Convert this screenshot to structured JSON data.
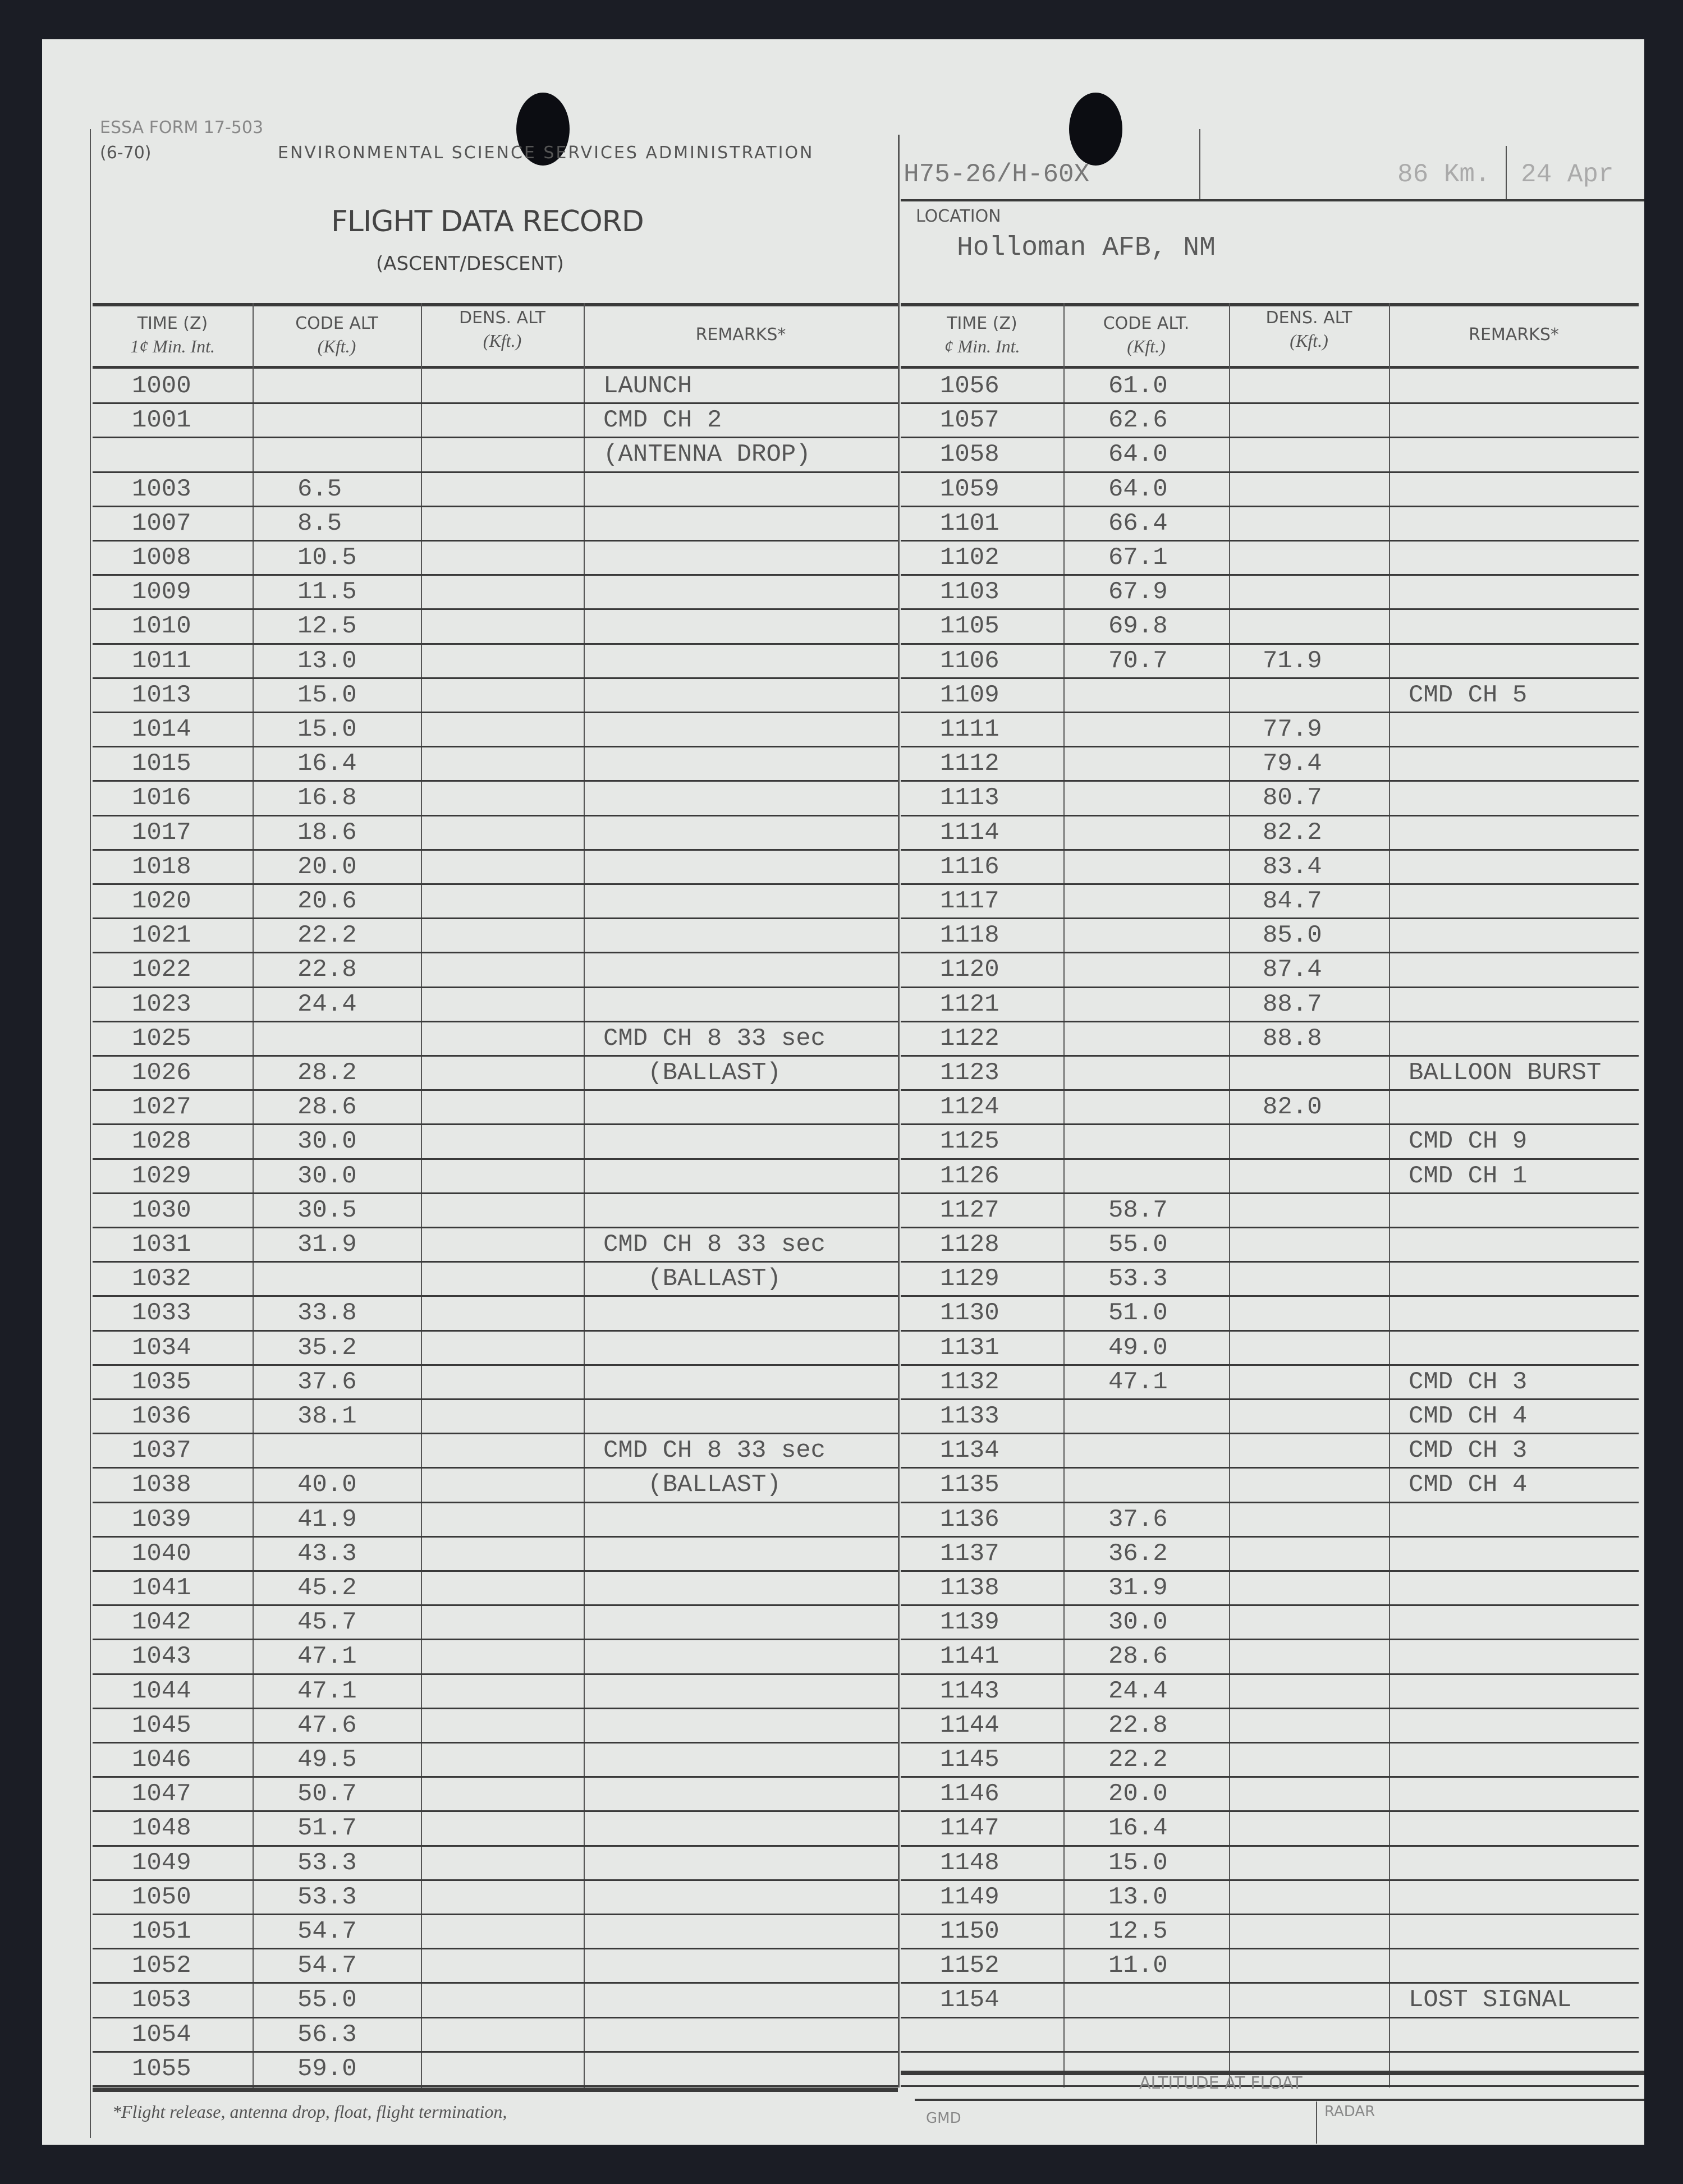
{
  "form": {
    "form_number": "ESSA FORM 17-503",
    "form_date": "(6-70)",
    "agency": "ENVIRONMENTAL SCIENCE SERVICES ADMINISTRATION",
    "title": "FLIGHT DATA RECORD",
    "subtitle": "(ASCENT/DESCENT)",
    "flight_id": "H75-26/H-60X",
    "altitude": "86 Km.",
    "date": "24 Apr",
    "location_label": "LOCATION",
    "location": "Holloman AFB, NM"
  },
  "columns": {
    "time": "TIME (Z)",
    "time_sub": "1¢ Min. Int.",
    "time_sub_right": "¢ Min. Int.",
    "code_alt": "CODE ALT",
    "code_alt_right": "CODE ALT.",
    "dens_alt": "DENS. ALT",
    "unit": "(Kft.)",
    "remarks": "REMARKS*"
  },
  "left_rows": [
    [
      "1000",
      "",
      "",
      "LAUNCH"
    ],
    [
      "1001",
      "",
      "",
      "CMD CH 2"
    ],
    [
      "",
      "",
      "",
      "(ANTENNA DROP)"
    ],
    [
      "1003",
      "6.5",
      "",
      ""
    ],
    [
      "1007",
      "8.5",
      "",
      ""
    ],
    [
      "1008",
      "10.5",
      "",
      ""
    ],
    [
      "1009",
      "11.5",
      "",
      ""
    ],
    [
      "1010",
      "12.5",
      "",
      ""
    ],
    [
      "1011",
      "13.0",
      "",
      ""
    ],
    [
      "1013",
      "15.0",
      "",
      ""
    ],
    [
      "1014",
      "15.0",
      "",
      ""
    ],
    [
      "1015",
      "16.4",
      "",
      ""
    ],
    [
      "1016",
      "16.8",
      "",
      ""
    ],
    [
      "1017",
      "18.6",
      "",
      ""
    ],
    [
      "1018",
      "20.0",
      "",
      ""
    ],
    [
      "1020",
      "20.6",
      "",
      ""
    ],
    [
      "1021",
      "22.2",
      "",
      ""
    ],
    [
      "1022",
      "22.8",
      "",
      ""
    ],
    [
      "1023",
      "24.4",
      "",
      ""
    ],
    [
      "1025",
      "",
      "",
      "CMD CH 8 33 sec"
    ],
    [
      "1026",
      "28.2",
      "",
      "   (BALLAST)"
    ],
    [
      "1027",
      "28.6",
      "",
      ""
    ],
    [
      "1028",
      "30.0",
      "",
      ""
    ],
    [
      "1029",
      "30.0",
      "",
      ""
    ],
    [
      "1030",
      "30.5",
      "",
      ""
    ],
    [
      "1031",
      "31.9",
      "",
      "CMD CH 8 33 sec"
    ],
    [
      "1032",
      "",
      "",
      "   (BALLAST)"
    ],
    [
      "1033",
      "33.8",
      "",
      ""
    ],
    [
      "1034",
      "35.2",
      "",
      ""
    ],
    [
      "1035",
      "37.6",
      "",
      ""
    ],
    [
      "1036",
      "38.1",
      "",
      ""
    ],
    [
      "1037",
      "",
      "",
      "CMD CH 8 33 sec"
    ],
    [
      "1038",
      "40.0",
      "",
      "   (BALLAST)"
    ],
    [
      "1039",
      "41.9",
      "",
      ""
    ],
    [
      "1040",
      "43.3",
      "",
      ""
    ],
    [
      "1041",
      "45.2",
      "",
      ""
    ],
    [
      "1042",
      "45.7",
      "",
      ""
    ],
    [
      "1043",
      "47.1",
      "",
      ""
    ],
    [
      "1044",
      "47.1",
      "",
      ""
    ],
    [
      "1045",
      "47.6",
      "",
      ""
    ],
    [
      "1046",
      "49.5",
      "",
      ""
    ],
    [
      "1047",
      "50.7",
      "",
      ""
    ],
    [
      "1048",
      "51.7",
      "",
      ""
    ],
    [
      "1049",
      "53.3",
      "",
      ""
    ],
    [
      "1050",
      "53.3",
      "",
      ""
    ],
    [
      "1051",
      "54.7",
      "",
      ""
    ],
    [
      "1052",
      "54.7",
      "",
      ""
    ],
    [
      "1053",
      "55.0",
      "",
      ""
    ],
    [
      "1054",
      "56.3",
      "",
      ""
    ],
    [
      "1055",
      "59.0",
      "",
      ""
    ]
  ],
  "right_rows": [
    [
      "1056",
      "61.0",
      "",
      ""
    ],
    [
      "1057",
      "62.6",
      "",
      ""
    ],
    [
      "1058",
      "64.0",
      "",
      ""
    ],
    [
      "1059",
      "64.0",
      "",
      ""
    ],
    [
      "1101",
      "66.4",
      "",
      ""
    ],
    [
      "1102",
      "67.1",
      "",
      ""
    ],
    [
      "1103",
      "67.9",
      "",
      ""
    ],
    [
      "1105",
      "69.8",
      "",
      ""
    ],
    [
      "1106",
      "70.7",
      "71.9",
      ""
    ],
    [
      "1109",
      "",
      "",
      "CMD CH 5"
    ],
    [
      "1111",
      "",
      "77.9",
      ""
    ],
    [
      "1112",
      "",
      "79.4",
      ""
    ],
    [
      "1113",
      "",
      "80.7",
      ""
    ],
    [
      "1114",
      "",
      "82.2",
      ""
    ],
    [
      "1116",
      "",
      "83.4",
      ""
    ],
    [
      "1117",
      "",
      "84.7",
      ""
    ],
    [
      "1118",
      "",
      "85.0",
      ""
    ],
    [
      "1120",
      "",
      "87.4",
      ""
    ],
    [
      "1121",
      "",
      "88.7",
      ""
    ],
    [
      "1122",
      "",
      "88.8",
      ""
    ],
    [
      "1123",
      "",
      "",
      "BALLOON BURST"
    ],
    [
      "1124",
      "",
      "82.0",
      ""
    ],
    [
      "1125",
      "",
      "",
      "CMD CH 9"
    ],
    [
      "1126",
      "",
      "",
      "CMD CH 1"
    ],
    [
      "1127",
      "58.7",
      "",
      ""
    ],
    [
      "1128",
      "55.0",
      "",
      ""
    ],
    [
      "1129",
      "53.3",
      "",
      ""
    ],
    [
      "1130",
      "51.0",
      "",
      ""
    ],
    [
      "1131",
      "49.0",
      "",
      ""
    ],
    [
      "1132",
      "47.1",
      "",
      "CMD CH 3"
    ],
    [
      "1133",
      "",
      "",
      "CMD CH 4"
    ],
    [
      "1134",
      "",
      "",
      "CMD CH 3"
    ],
    [
      "1135",
      "",
      "",
      "CMD CH 4"
    ],
    [
      "1136",
      "37.6",
      "",
      ""
    ],
    [
      "1137",
      "36.2",
      "",
      ""
    ],
    [
      "1138",
      "31.9",
      "",
      ""
    ],
    [
      "1139",
      "30.0",
      "",
      ""
    ],
    [
      "1141",
      "28.6",
      "",
      ""
    ],
    [
      "1143",
      "24.4",
      "",
      ""
    ],
    [
      "1144",
      "22.8",
      "",
      ""
    ],
    [
      "1145",
      "22.2",
      "",
      ""
    ],
    [
      "1146",
      "20.0",
      "",
      ""
    ],
    [
      "1147",
      "16.4",
      "",
      ""
    ],
    [
      "1148",
      "15.0",
      "",
      ""
    ],
    [
      "1149",
      "13.0",
      "",
      ""
    ],
    [
      "1150",
      "12.5",
      "",
      ""
    ],
    [
      "1152",
      "11.0",
      "",
      ""
    ],
    [
      "1154",
      "",
      "",
      "LOST SIGNAL"
    ],
    [
      "",
      "",
      "",
      ""
    ],
    [
      "",
      "",
      "",
      ""
    ]
  ],
  "footer": {
    "footnote": "*Flight release, antenna drop, float, flight termination,",
    "altitude_at_float": "ALTITUDE AT FLOAT",
    "gmd": "GMD",
    "radar": "RADAR"
  }
}
